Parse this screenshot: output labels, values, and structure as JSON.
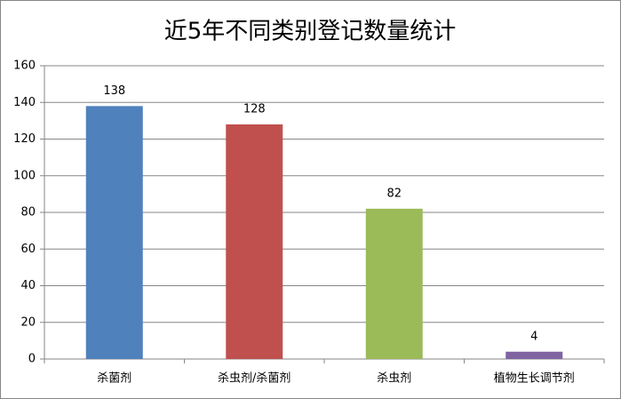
{
  "chart_data": {
    "type": "bar",
    "title": "近5年不同类别登记数量统计",
    "categories": [
      "杀菌剂",
      "杀虫剂/杀菌剂",
      "杀虫剂",
      "植物生长调节剂"
    ],
    "values": [
      138,
      128,
      82,
      4
    ],
    "colors": [
      "#4f81bd",
      "#c0504d",
      "#9bbb59",
      "#8064a2"
    ],
    "ylim": [
      0,
      160
    ],
    "yticks": [
      0,
      20,
      40,
      60,
      80,
      100,
      120,
      140,
      160
    ],
    "grid": true
  }
}
